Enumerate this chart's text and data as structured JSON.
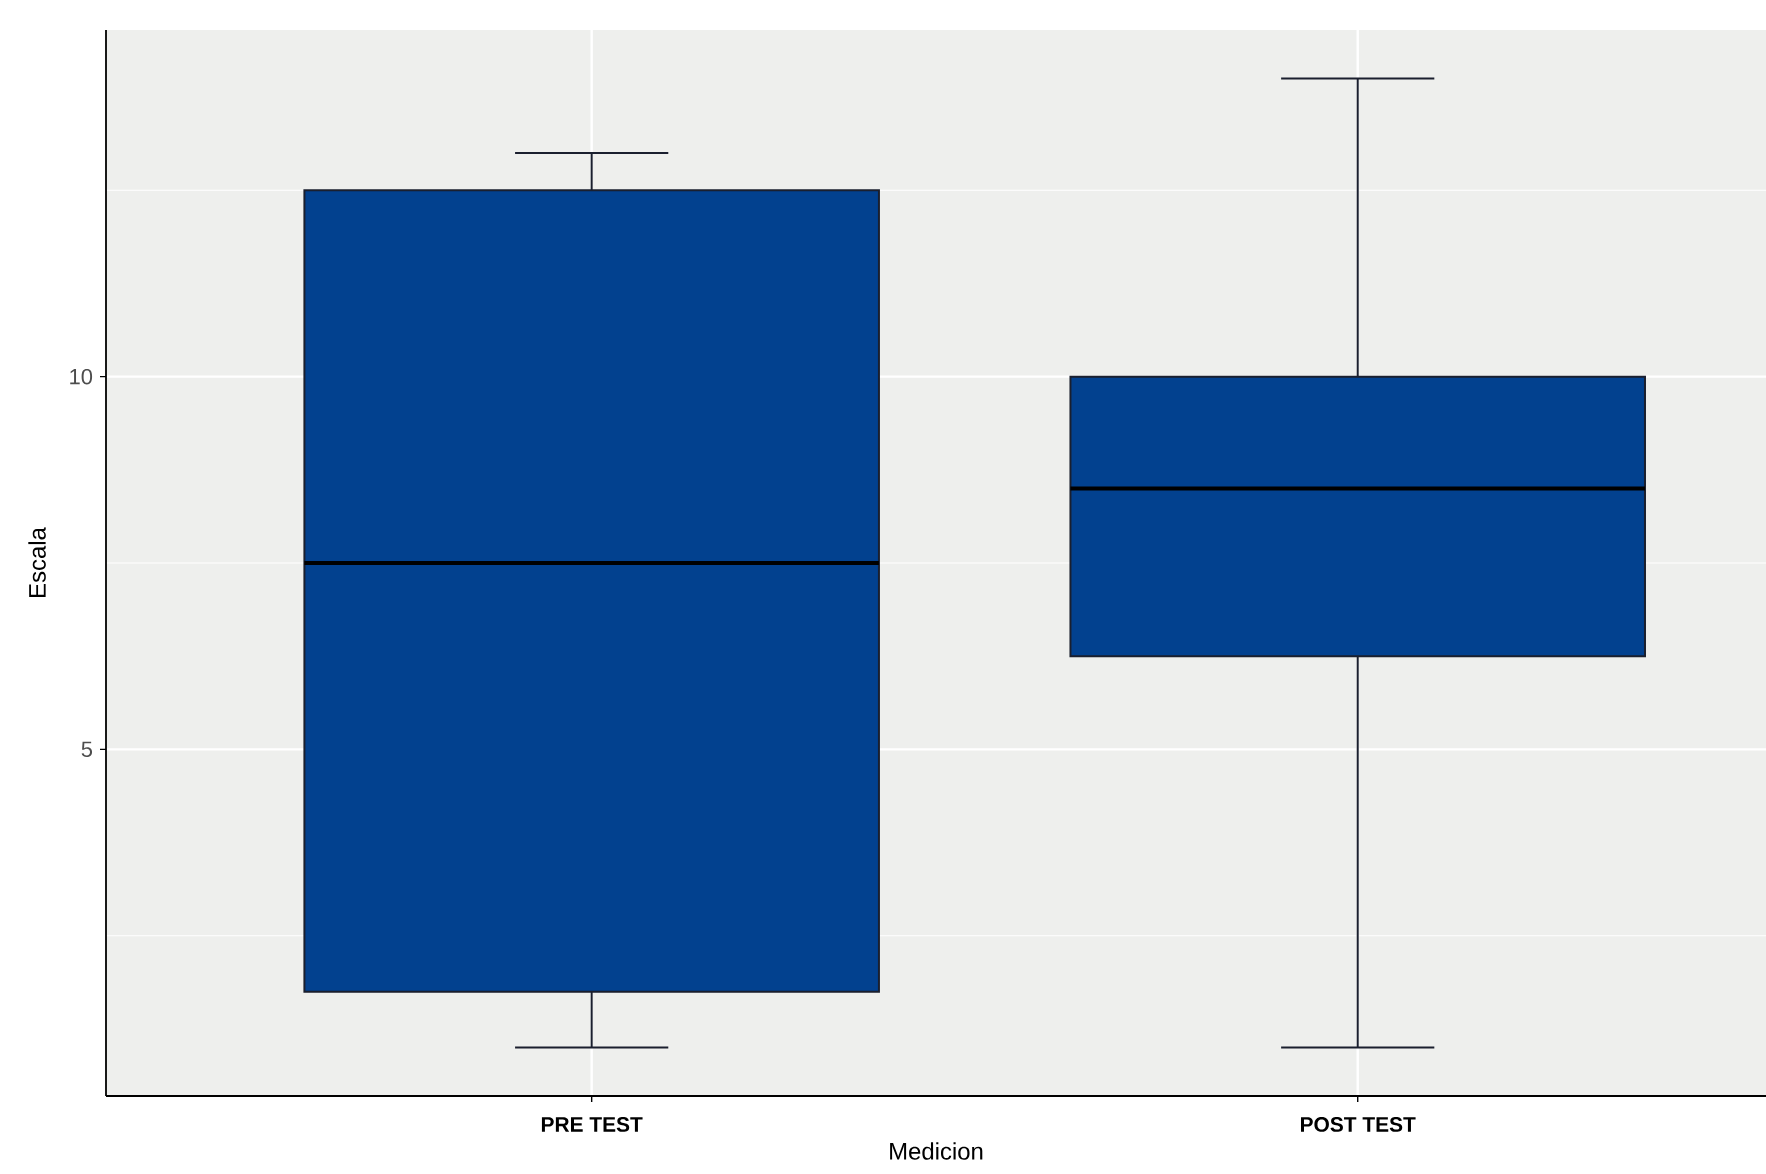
{
  "chart_data": {
    "type": "box",
    "xlabel": "Medicion",
    "ylabel": "Escala",
    "categories": [
      "PRE TEST",
      "POST TEST"
    ],
    "boxes": [
      {
        "low": 1,
        "q1": 1.75,
        "median": 7.5,
        "q3": 12.5,
        "high": 13
      },
      {
        "low": 1,
        "q1": 6.25,
        "median": 8.5,
        "q3": 10,
        "high": 14
      }
    ],
    "color": "#02418f",
    "ylim": [
      0.35,
      14.65
    ],
    "yticks": [
      5,
      10
    ],
    "grid": true
  }
}
